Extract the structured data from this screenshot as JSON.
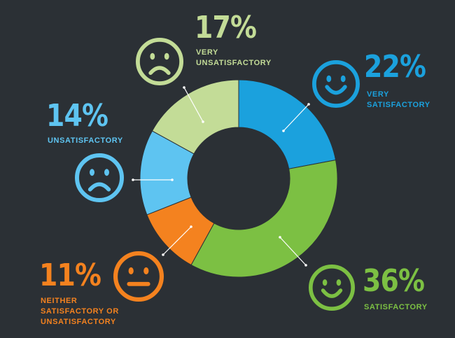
{
  "chart_data": {
    "type": "pie",
    "variant": "donut",
    "slices": [
      {
        "key": "very_satisfactory",
        "value": 22,
        "pct_label": "22%",
        "lines": [
          "VERY",
          "SATISFACTORY"
        ],
        "color": "#1ba1dd",
        "face": "smile-icon"
      },
      {
        "key": "satisfactory",
        "value": 36,
        "pct_label": "36%",
        "lines": [
          "SATISFACTORY"
        ],
        "color": "#7cc043",
        "face": "smile-icon"
      },
      {
        "key": "neither",
        "value": 11,
        "pct_label": "11%",
        "lines": [
          "NEITHER",
          "SATISFACTORY OR",
          "UNSATISFACTORY"
        ],
        "color": "#f4821f",
        "face": "neutral-face-icon"
      },
      {
        "key": "unsatisfactory",
        "value": 14,
        "pct_label": "14%",
        "lines": [
          "UNSATISFACTORY"
        ],
        "color": "#5ec4f1",
        "face": "frown-icon"
      },
      {
        "key": "very_unsatisfactory",
        "value": 17,
        "pct_label": "17%",
        "lines": [
          "VERY",
          "UNSATISFACTORY"
        ],
        "color": "#c3dc97",
        "face": "frown-icon"
      }
    ]
  },
  "colors": {
    "background": "#2b3035",
    "center": "#2b3035",
    "leader": "#ffffff"
  }
}
